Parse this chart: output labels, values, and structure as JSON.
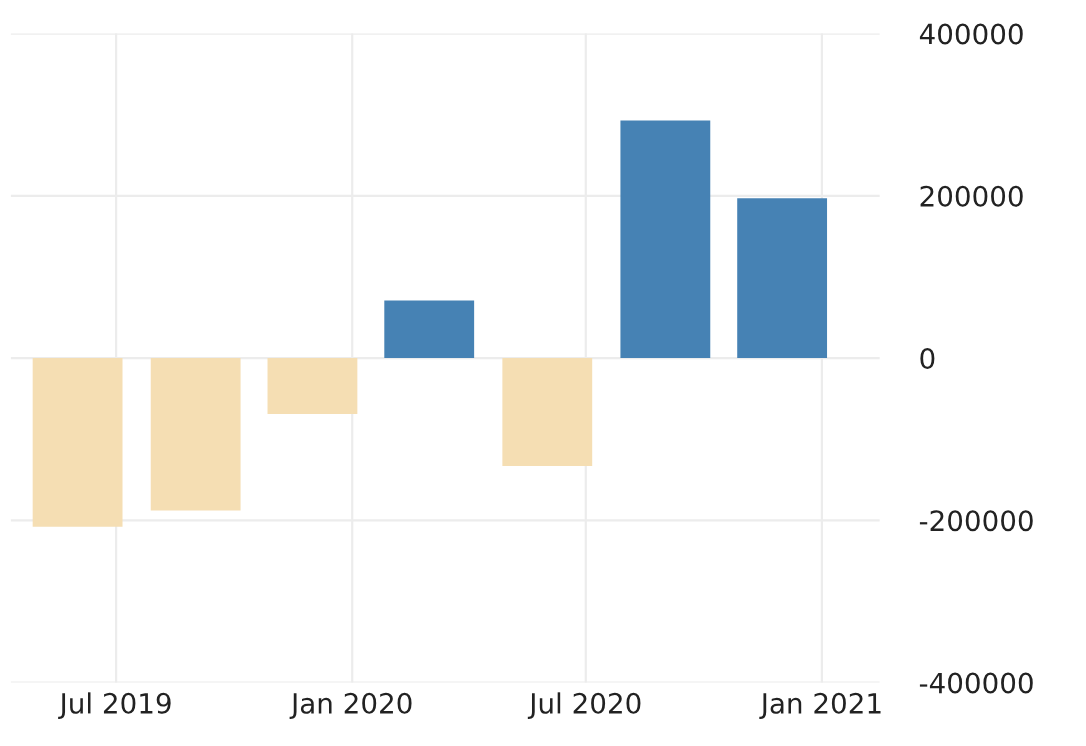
{
  "chart_data": {
    "type": "bar",
    "x": [
      "2019-06-01",
      "2019-09-01",
      "2019-12-01",
      "2020-03-01",
      "2020-06-01",
      "2020-09-01",
      "2020-12-01"
    ],
    "values": [
      -208000,
      -188000,
      -69000,
      71000,
      -133000,
      293000,
      197000
    ],
    "colors": [
      "#f5deb3",
      "#f5deb3",
      "#f5deb3",
      "#4682b4",
      "#f5deb3",
      "#4682b4",
      "#4682b4"
    ],
    "xlim": [
      "2019-04-10",
      "2021-02-15"
    ],
    "xticks": [
      {
        "value": "2019-07-01",
        "label": "Jul 2019"
      },
      {
        "value": "2020-01-01",
        "label": "Jan 2020"
      },
      {
        "value": "2020-07-01",
        "label": "Jul 2020"
      },
      {
        "value": "2021-01-01",
        "label": "Jan 2021"
      }
    ],
    "ylim": [
      -400000,
      400000
    ],
    "yticks": [
      -400000,
      -200000,
      0,
      200000,
      400000
    ],
    "grid": true
  }
}
